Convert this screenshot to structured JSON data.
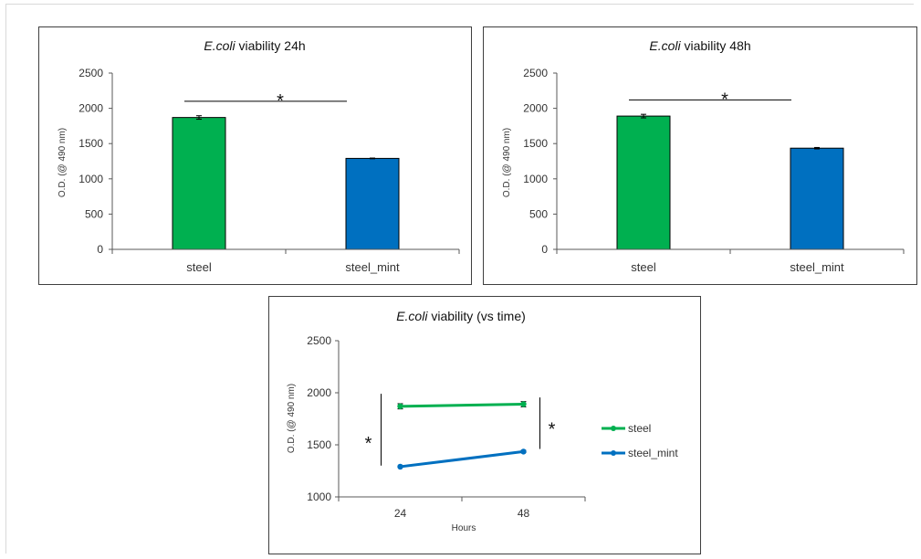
{
  "colors": {
    "steel": "#00b050",
    "steel_mint": "#0070c0",
    "axis": "#595959",
    "line": "#000000"
  },
  "chart_data": [
    {
      "type": "bar",
      "title_italic": "E.coli",
      "title_rest": " viability 24h",
      "categories": [
        "steel",
        "steel_mint"
      ],
      "values": [
        1870,
        1290
      ],
      "errors": [
        25,
        5
      ],
      "ylabel": "O.D. (@ 490 nm)",
      "ylim": [
        0,
        2500
      ],
      "yticks": [
        "0",
        "500",
        "1000",
        "1500",
        "2000",
        "2500"
      ],
      "significance": "*"
    },
    {
      "type": "bar",
      "title_italic": "E.coli",
      "title_rest": " viability 48h",
      "categories": [
        "steel",
        "steel_mint"
      ],
      "values": [
        1890,
        1435
      ],
      "errors": [
        25,
        10
      ],
      "ylabel": "O.D. (@ 490 nm)",
      "ylim": [
        0,
        2500
      ],
      "yticks": [
        "0",
        "500",
        "1000",
        "1500",
        "2000",
        "2500"
      ],
      "significance": "*"
    },
    {
      "type": "line",
      "title_italic": "E.coli",
      "title_rest": " viability (vs time)",
      "x": [
        "24",
        "48"
      ],
      "xlabel": "Hours",
      "ylabel": "O.D. (@ 490 nm)",
      "ylim": [
        1000,
        2500
      ],
      "yticks": [
        "1000",
        "1500",
        "2000",
        "2500"
      ],
      "series": [
        {
          "name": "steel",
          "values": [
            1870,
            1890
          ],
          "errors": [
            25,
            25
          ]
        },
        {
          "name": "steel_mint",
          "values": [
            1290,
            1435
          ],
          "errors": [
            5,
            10
          ]
        }
      ],
      "legend": "right",
      "significance_left": "*",
      "significance_right": "*"
    }
  ]
}
